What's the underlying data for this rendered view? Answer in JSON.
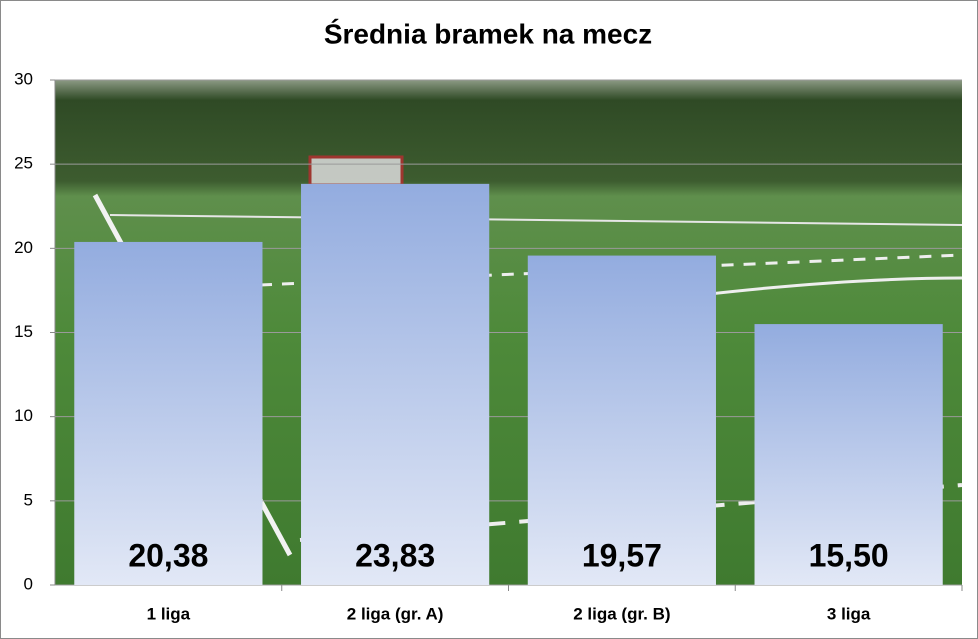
{
  "chart_data": {
    "type": "bar",
    "title": "Średnia bramek na mecz",
    "categories": [
      "1 liga",
      "2 liga (gr. A)",
      "2 liga (gr. B)",
      "3 liga"
    ],
    "values": [
      20.38,
      23.83,
      19.57,
      15.5
    ],
    "value_labels": [
      "20,38",
      "23,83",
      "19,57",
      "15,50"
    ],
    "color": "#a9bde7",
    "ylim": [
      0,
      30
    ],
    "yticks": [
      0,
      5,
      10,
      15,
      20,
      25,
      30
    ],
    "grid": true
  }
}
